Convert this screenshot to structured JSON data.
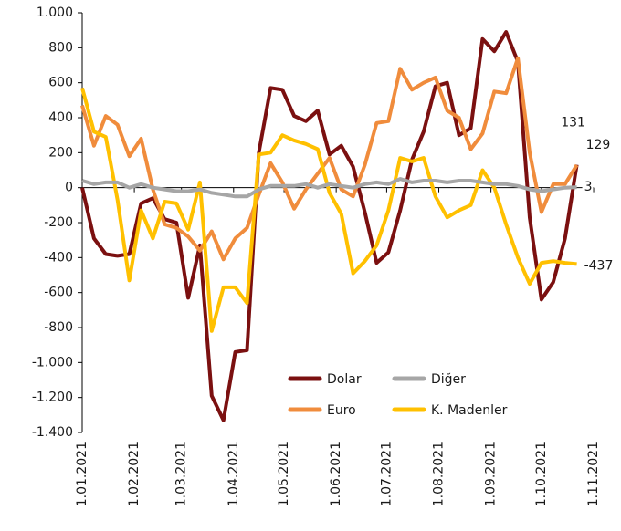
{
  "chart_data": {
    "type": "line",
    "x": [
      "1.01.2021",
      "8.01.2021",
      "15.01.2021",
      "22.01.2021",
      "29.01.2021",
      "5.02.2021",
      "12.02.2021",
      "19.02.2021",
      "26.02.2021",
      "5.03.2021",
      "12.03.2021",
      "19.03.2021",
      "26.03.2021",
      "2.04.2021",
      "9.04.2021",
      "16.04.2021",
      "23.04.2021",
      "30.04.2021",
      "7.05.2021",
      "14.05.2021",
      "21.05.2021",
      "28.05.2021",
      "4.06.2021",
      "11.06.2021",
      "18.06.2021",
      "25.06.2021",
      "2.07.2021",
      "9.07.2021",
      "16.07.2021",
      "23.07.2021",
      "30.07.2021",
      "6.08.2021",
      "13.08.2021",
      "20.08.2021",
      "27.08.2021",
      "3.09.2021",
      "10.09.2021",
      "17.09.2021",
      "24.09.2021",
      "1.10.2021",
      "8.10.2021",
      "15.10.2021",
      "22.10.2021"
    ],
    "series": [
      {
        "name": "Dolar",
        "color": "#7b1010",
        "values": [
          0,
          -290,
          -380,
          -390,
          -380,
          -90,
          -60,
          -180,
          -200,
          -630,
          -330,
          -1190,
          -1330,
          -940,
          -930,
          200,
          570,
          560,
          410,
          380,
          440,
          190,
          240,
          120,
          -140,
          -430,
          -370,
          -130,
          160,
          320,
          580,
          600,
          300,
          340,
          850,
          780,
          890,
          720,
          -170,
          -640,
          -540,
          -290,
          131
        ]
      },
      {
        "name": "Diğer",
        "color": "#a6a6a6",
        "values": [
          40,
          20,
          30,
          30,
          0,
          20,
          0,
          -10,
          -20,
          -20,
          -10,
          -30,
          -40,
          -50,
          -50,
          -10,
          10,
          10,
          10,
          20,
          0,
          20,
          10,
          0,
          20,
          30,
          20,
          50,
          30,
          40,
          40,
          30,
          40,
          40,
          30,
          20,
          20,
          10,
          -10,
          -20,
          -10,
          0,
          3
        ]
      },
      {
        "name": "Euro",
        "color": "#f08c3c",
        "values": [
          470,
          240,
          410,
          360,
          180,
          280,
          -10,
          -210,
          -230,
          -280,
          -360,
          -250,
          -410,
          -290,
          -230,
          -40,
          140,
          30,
          -120,
          -10,
          80,
          170,
          -10,
          -50,
          130,
          370,
          380,
          680,
          560,
          600,
          630,
          440,
          400,
          220,
          310,
          550,
          540,
          740,
          200,
          -140,
          20,
          20,
          129
        ]
      },
      {
        "name": "K. Madenler",
        "color": "#ffc000",
        "values": [
          570,
          320,
          290,
          -70,
          -530,
          -130,
          -290,
          -80,
          -90,
          -240,
          30,
          -820,
          -570,
          -570,
          -660,
          190,
          200,
          300,
          270,
          250,
          220,
          -30,
          -150,
          -490,
          -420,
          -330,
          -130,
          170,
          150,
          170,
          -50,
          -170,
          -130,
          -100,
          100,
          0,
          -210,
          -400,
          -550,
          -430,
          -420,
          -430,
          -437
        ]
      }
    ],
    "xlim": [
      "1.01.2021",
      "1.11.2021"
    ],
    "xticks": [
      "1.01.2021",
      "1.02.2021",
      "1.03.2021",
      "1.04.2021",
      "1.05.2021",
      "1.06.2021",
      "1.07.2021",
      "1.08.2021",
      "1.09.2021",
      "1.10.2021",
      "1.11.2021"
    ],
    "ylim": [
      -1400,
      1000
    ],
    "yticks": [
      {
        "value": -1400,
        "label": "-1.400"
      },
      {
        "value": -1200,
        "label": "-1.200"
      },
      {
        "value": -1000,
        "label": "-1.000"
      },
      -800,
      -600,
      -400,
      -200,
      0,
      200,
      400,
      600,
      800,
      {
        "value": 1000,
        "label": "1.000"
      }
    ]
  }
}
